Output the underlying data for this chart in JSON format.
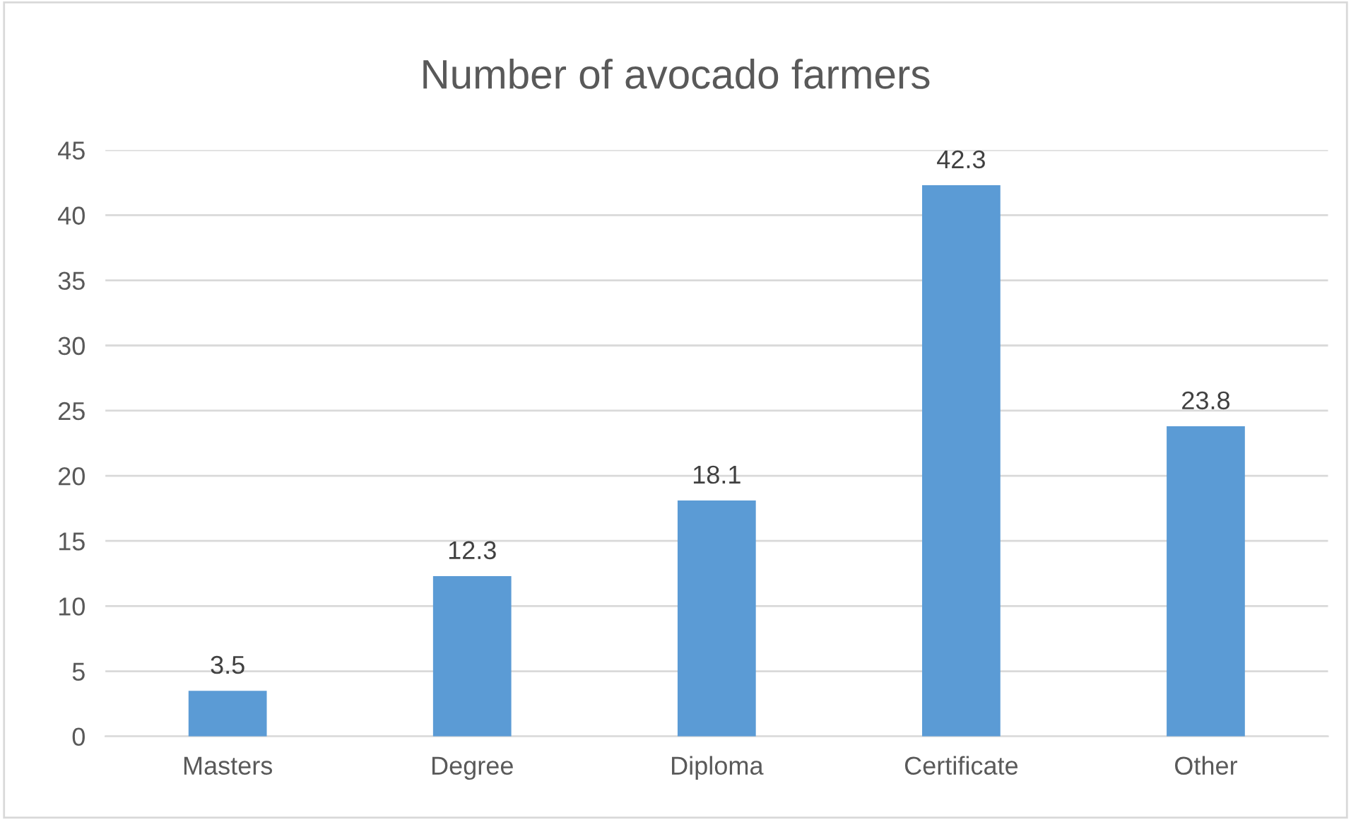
{
  "chart_data": {
    "type": "bar",
    "title": "Number of avocado farmers",
    "categories": [
      "Masters",
      "Degree",
      "Diploma",
      "Certificate",
      "Other"
    ],
    "values": [
      3.5,
      12.3,
      18.1,
      42.3,
      23.8
    ],
    "color": "#5b9bd5",
    "ylim": [
      0,
      45
    ],
    "yticks": [
      0,
      5,
      10,
      15,
      20,
      25,
      30,
      35,
      40,
      45
    ],
    "grid": "y",
    "data_labels": true,
    "legend": false
  }
}
